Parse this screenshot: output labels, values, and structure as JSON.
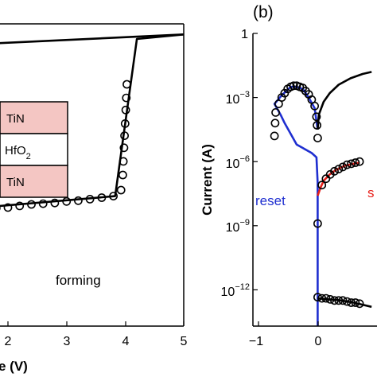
{
  "chart_data": [
    {
      "panel": "a",
      "type": "line",
      "xlabel": "Voltage (V)",
      "xlabel_visible": "e (V)",
      "xlim": [
        0,
        5
      ],
      "xticks": [
        "2",
        "3",
        "4",
        "5"
      ],
      "ylabel": "",
      "annotations": {
        "forming": "forming"
      },
      "stack_layers": [
        "TiN",
        "HfO",
        "TiN"
      ],
      "stack_subscript": "2",
      "colors": {
        "line": "#000000",
        "tin": "#f4c6c3",
        "hfo2": "#ffffff"
      },
      "series": [
        {
          "style": "solid",
          "x": [
            -1.0,
            3.83,
            4.2,
            5.0
          ],
          "y": [
            7.0,
            8.6,
            19.0,
            19.3
          ]
        },
        {
          "style": "markers",
          "x": [
            -1.0,
            0.0,
            0.2,
            0.4,
            0.6,
            0.8,
            1.0,
            1.2,
            1.4,
            1.6,
            1.8,
            2.0,
            2.2,
            2.4,
            2.6,
            2.8,
            3.0,
            3.2,
            3.4,
            3.6,
            3.8,
            3.93,
            3.96,
            3.97,
            3.98,
            3.99,
            4.0,
            4.01,
            4.02,
            4.03
          ],
          "y": [
            7.0,
            7.0,
            7.05,
            7.15,
            7.25,
            7.35,
            7.45,
            7.5,
            7.6,
            7.7,
            7.8,
            7.85,
            7.95,
            8.05,
            8.1,
            8.15,
            8.25,
            8.3,
            8.4,
            8.5,
            8.6,
            9.0,
            10.0,
            10.9,
            11.8,
            12.6,
            13.4,
            14.3,
            15.1,
            16.0
          ]
        },
        {
          "style": "solid",
          "x": [
            -1.0,
            5.0
          ],
          "y": [
            18.2,
            19.3
          ]
        }
      ]
    },
    {
      "panel": "b",
      "panel_label": "(b)",
      "type": "line",
      "ylabel": "Current (A)",
      "yscale": "log",
      "ylim_exponent": [
        -13.7,
        0
      ],
      "yticks": [
        {
          "base": "1",
          "exp": ""
        },
        {
          "base": "10",
          "exp": "−3"
        },
        {
          "base": "10",
          "exp": "−6"
        },
        {
          "base": "10",
          "exp": "−9"
        },
        {
          "base": "10",
          "exp": "−12"
        }
      ],
      "xlim": [
        -1.2,
        0.9
      ],
      "xticks": [
        "−1",
        "0"
      ],
      "annotations": {
        "reset": "reset",
        "set": "s"
      },
      "colors": {
        "reset": "#1f2fd0",
        "set": "#e8211b",
        "black": "#000000"
      },
      "series": [
        {
          "name": "reset",
          "style": "solid",
          "color": "reset",
          "x": [
            0.0,
            0.0,
            -0.02,
            -0.1,
            -0.35,
            -0.55,
            -0.62,
            -0.72,
            -0.6,
            -0.45,
            -0.35,
            -0.25,
            -0.15,
            -0.05,
            0.0
          ],
          "y_exp": [
            -13.7,
            -7.0,
            -5.8,
            -5.6,
            -5.2,
            -4.2,
            -3.8,
            -3.3,
            -2.9,
            -2.5,
            -2.5,
            -2.6,
            -3.0,
            -3.5,
            -4.5
          ]
        },
        {
          "name": "set",
          "style": "solid",
          "color": "set",
          "x": [
            0.0,
            0.05,
            0.1,
            0.2,
            0.3,
            0.45,
            0.6,
            0.7
          ],
          "y_exp": [
            -7.6,
            -7.2,
            -6.9,
            -6.6,
            -6.4,
            -6.2,
            -6.1,
            -6.05
          ]
        },
        {
          "style": "solid",
          "color": "black",
          "x": [
            0.0,
            0.02,
            0.1,
            0.2,
            0.35,
            0.55,
            0.75,
            0.9
          ],
          "y_exp": [
            -4.5,
            -3.8,
            -3.2,
            -2.8,
            -2.4,
            -2.1,
            -1.9,
            -1.8
          ]
        },
        {
          "style": "solid",
          "color": "black",
          "x": [
            0.0,
            0.2,
            0.4,
            0.6,
            0.75,
            0.9
          ],
          "y_exp": [
            -12.4,
            -12.45,
            -12.5,
            -12.6,
            -12.7,
            -12.8
          ]
        },
        {
          "style": "markers",
          "color": "black",
          "x": [
            -0.72,
            -0.71,
            -0.7,
            -0.65,
            -0.6,
            -0.55,
            -0.5,
            -0.45,
            -0.4,
            -0.35,
            -0.3,
            -0.25,
            -0.2,
            -0.15,
            -0.1,
            -0.05,
            -0.02,
            -0.01,
            0.0,
            0.0
          ],
          "y_exp": [
            -4.8,
            -4.2,
            -3.7,
            -3.3,
            -3.0,
            -2.8,
            -2.6,
            -2.5,
            -2.45,
            -2.45,
            -2.5,
            -2.55,
            -2.7,
            -2.85,
            -3.1,
            -3.4,
            -3.9,
            -4.3,
            -4.9,
            -8.9
          ]
        },
        {
          "style": "markers",
          "color": "black",
          "x": [
            0.07,
            0.14,
            0.21,
            0.28,
            0.35,
            0.42,
            0.49,
            0.56,
            0.63,
            0.7
          ],
          "y_exp": [
            -7.1,
            -6.8,
            -6.6,
            -6.45,
            -6.35,
            -6.25,
            -6.15,
            -6.1,
            -6.05,
            -6.0
          ]
        },
        {
          "style": "markers",
          "color": "black",
          "x": [
            0.0,
            0.07,
            0.14,
            0.21,
            0.28,
            0.35,
            0.42,
            0.49,
            0.56,
            0.63,
            0.7
          ],
          "y_exp": [
            -12.35,
            -12.4,
            -12.4,
            -12.45,
            -12.5,
            -12.5,
            -12.5,
            -12.55,
            -12.6,
            -12.6,
            -12.65
          ]
        }
      ]
    }
  ]
}
